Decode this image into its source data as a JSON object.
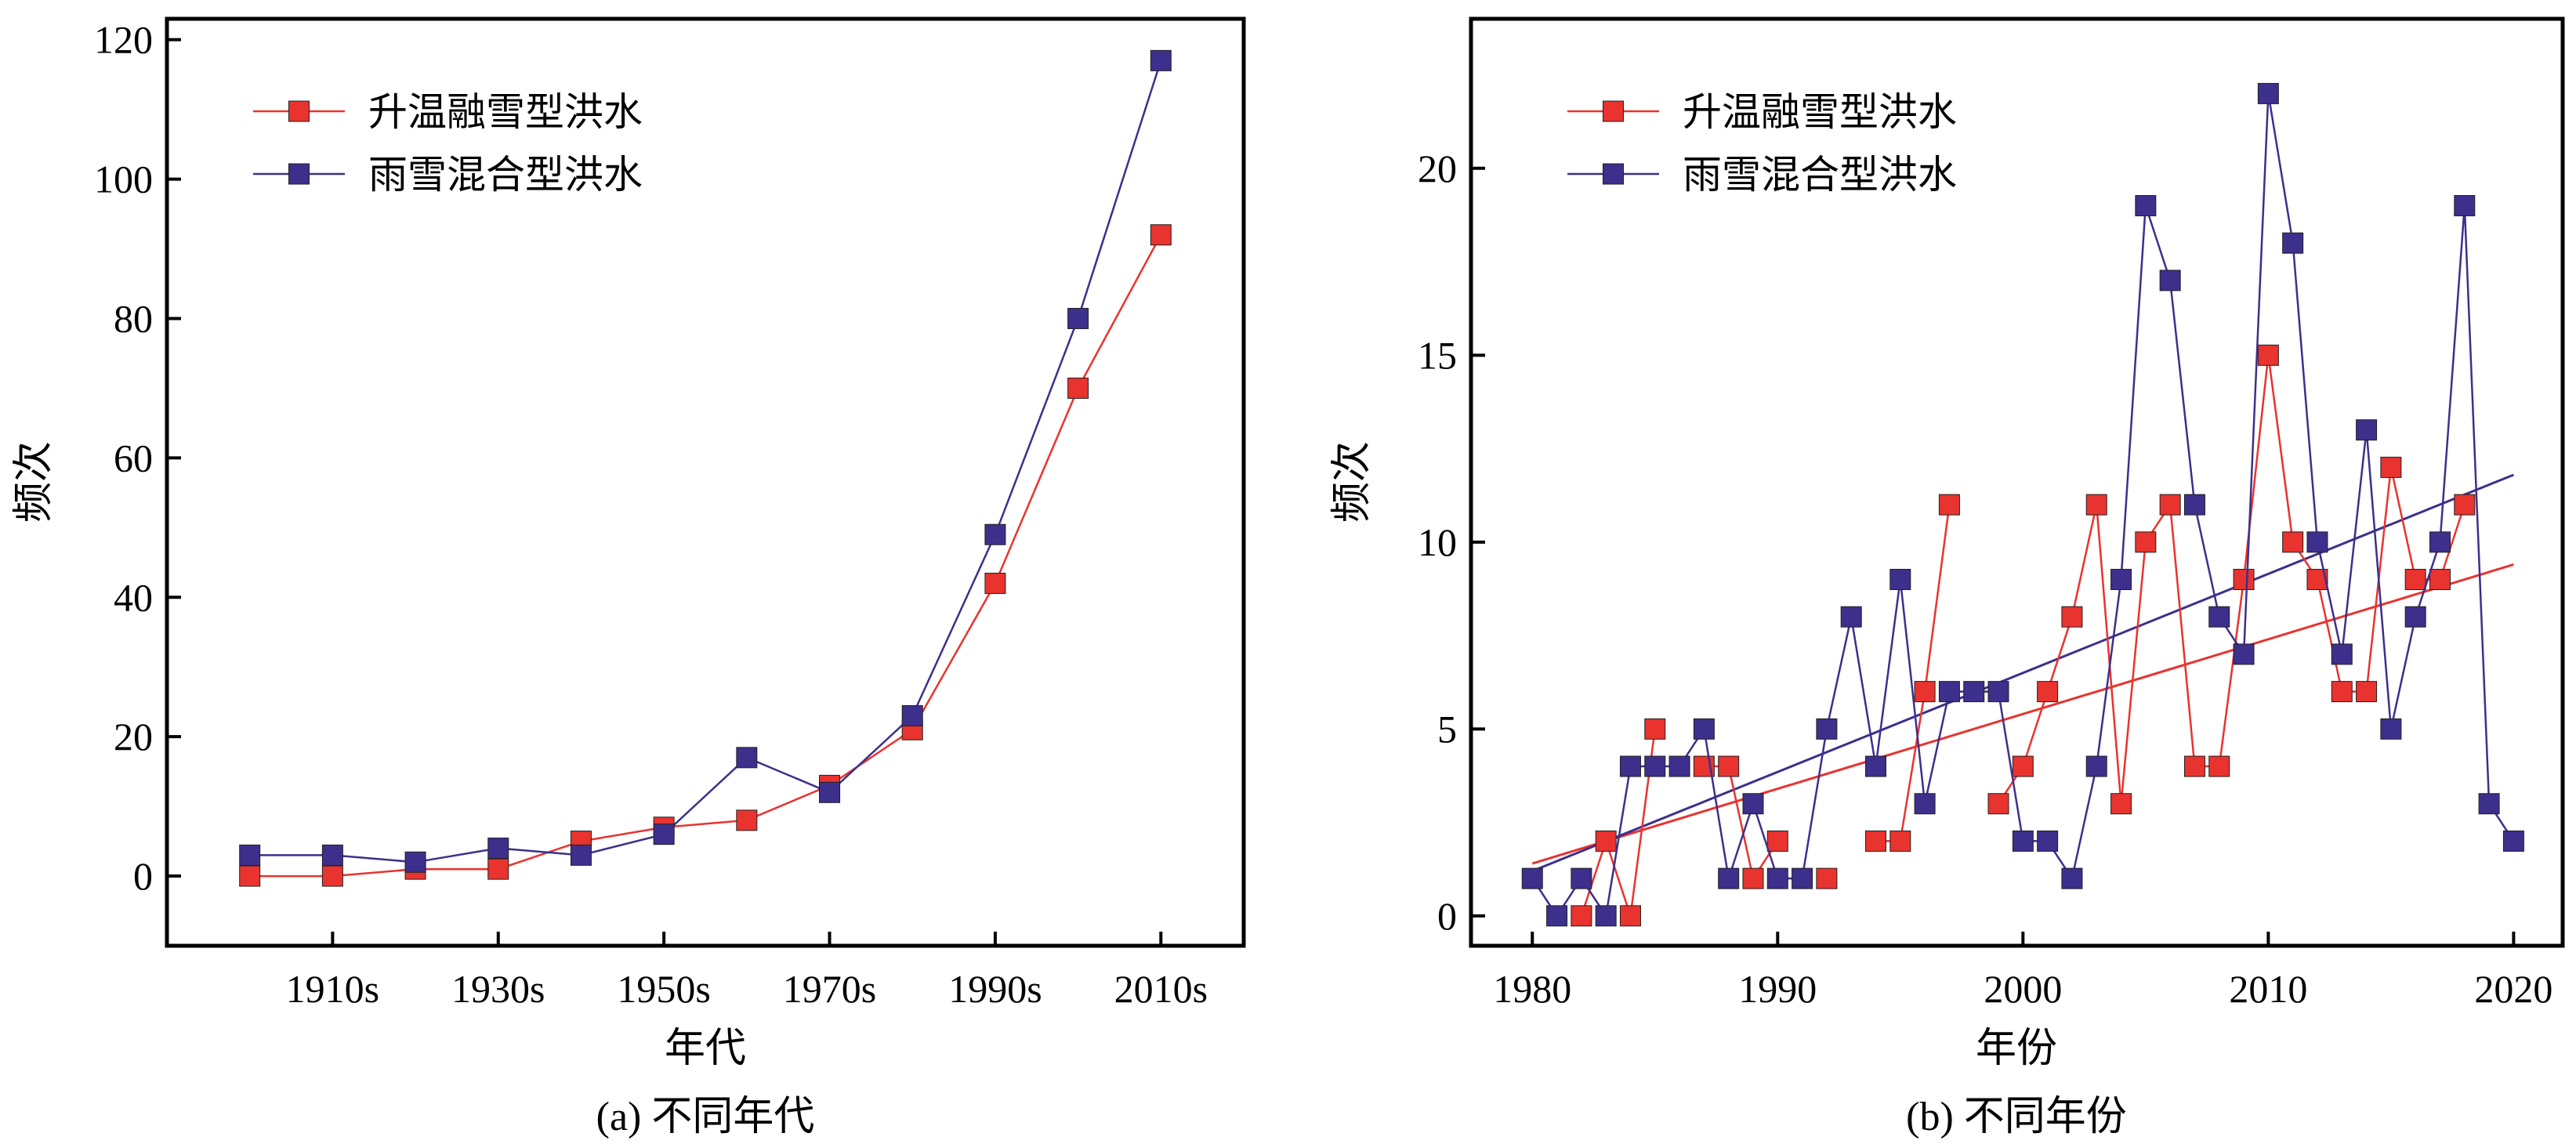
{
  "colors": {
    "warming_snowmelt": "#e8332f",
    "rain_snow_mixed": "#3d2f8c",
    "frame": "#000000"
  },
  "chart_data": [
    {
      "type": "line",
      "xlabel": "年代",
      "ylabel": "频次",
      "caption": "(a)  不同年代",
      "x": [
        1900,
        1910,
        1920,
        1930,
        1940,
        1950,
        1960,
        1970,
        1980,
        1990,
        2000,
        2010
      ],
      "xlim": [
        1890,
        2020
      ],
      "ylim": [
        -10,
        123
      ],
      "xticks": [
        1910,
        1930,
        1950,
        1970,
        1990,
        2010
      ],
      "xticklabels": [
        "1910s",
        "1930s",
        "1950s",
        "1970s",
        "1990s",
        "2010s"
      ],
      "yticks": [
        0,
        20,
        40,
        60,
        80,
        100,
        120
      ],
      "yticklabels": [
        "0",
        "20",
        "40",
        "60",
        "80",
        "100",
        "120"
      ],
      "legend_position": "top-left",
      "grid": false,
      "series": [
        {
          "name": "升温融雪型洪水",
          "color": "#e8332f",
          "values": [
            0,
            0,
            1,
            1,
            5,
            7,
            8,
            13,
            21,
            42,
            70,
            92
          ]
        },
        {
          "name": "雨雪混合型洪水",
          "color": "#3d2f8c",
          "values": [
            3,
            3,
            2,
            4,
            3,
            6,
            17,
            12,
            23,
            49,
            80,
            117
          ]
        }
      ],
      "trendlines": []
    },
    {
      "type": "line",
      "xlabel": "年份",
      "ylabel": "频次",
      "caption": "(b)  不同年份",
      "x": [
        1980,
        1981,
        1982,
        1983,
        1984,
        1985,
        1986,
        1987,
        1988,
        1989,
        1990,
        1991,
        1992,
        1993,
        1994,
        1995,
        1996,
        1997,
        1998,
        1999,
        2000,
        2001,
        2002,
        2003,
        2004,
        2005,
        2006,
        2007,
        2008,
        2009,
        2010,
        2011,
        2012,
        2013,
        2014,
        2015,
        2016,
        2017,
        2018,
        2019,
        2020
      ],
      "xlim": [
        1977.5,
        2022
      ],
      "ylim": [
        -0.8,
        24
      ],
      "xticks": [
        1980,
        1990,
        2000,
        2010,
        2020
      ],
      "xticklabels": [
        "1980",
        "1990",
        "2000",
        "2010",
        "2020"
      ],
      "yticks": [
        0,
        5,
        10,
        15,
        20
      ],
      "yticklabels": [
        "0",
        "5",
        "10",
        "15",
        "20"
      ],
      "legend_position": "top-left",
      "grid": false,
      "series": [
        {
          "name": "升温融雪型洪水",
          "color": "#e8332f",
          "values": [
            null,
            null,
            0,
            2,
            0,
            5,
            null,
            4,
            4,
            1,
            2,
            null,
            1,
            null,
            2,
            2,
            6,
            11,
            null,
            3,
            4,
            6,
            8,
            11,
            3,
            10,
            11,
            4,
            4,
            9,
            15,
            10,
            9,
            6,
            6,
            12,
            9,
            9,
            11,
            null,
            null
          ]
        },
        {
          "name": "雨雪混合型洪水",
          "color": "#3d2f8c",
          "values": [
            1,
            0,
            1,
            0,
            4,
            4,
            4,
            5,
            1,
            3,
            1,
            1,
            5,
            8,
            4,
            9,
            3,
            6,
            6,
            6,
            2,
            2,
            1,
            4,
            9,
            19,
            17,
            11,
            8,
            7,
            22,
            18,
            10,
            7,
            13,
            5,
            8,
            10,
            19,
            3,
            2
          ]
        }
      ],
      "trendlines": [
        {
          "series": "升温融雪型洪水",
          "color": "#e8332f",
          "x": [
            1980,
            2020
          ],
          "y": [
            1.4,
            9.4
          ]
        },
        {
          "series": "雨雪混合型洪水",
          "color": "#3d2f8c",
          "x": [
            1980,
            2020
          ],
          "y": [
            1.2,
            11.8
          ]
        }
      ]
    }
  ]
}
